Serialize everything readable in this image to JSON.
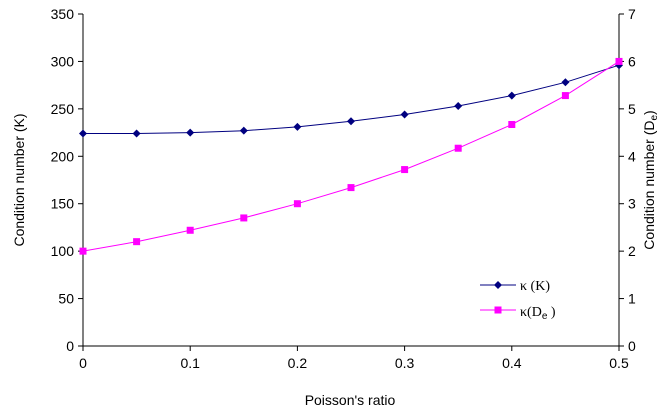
{
  "chart_data": {
    "type": "line",
    "x": [
      0,
      0.05,
      0.1,
      0.15,
      0.2,
      0.25,
      0.3,
      0.35,
      0.4,
      0.45,
      0.5
    ],
    "xlabel": "Poisson's ratio",
    "xlim": [
      0,
      0.5
    ],
    "xticks": [
      "0",
      "0.1",
      "0.2",
      "0.3",
      "0.4",
      "0.5"
    ],
    "ylabel_left": "Condition number (K)",
    "ylim_left": [
      0,
      350
    ],
    "yticks_left": [
      "0",
      "50",
      "100",
      "150",
      "200",
      "250",
      "300",
      "350"
    ],
    "ylabel_right_main": "Condition number (D",
    "ylabel_right_sub": "e",
    "ylabel_right_close": ")",
    "ylim_right": [
      0,
      7
    ],
    "yticks_right": [
      "0",
      "1",
      "2",
      "3",
      "4",
      "5",
      "6",
      "7"
    ],
    "grid": false,
    "legend_position": "bottom-right",
    "series": [
      {
        "name": "κ (K)",
        "axis": "left",
        "color": "#000080",
        "marker": "diamond",
        "values": [
          224,
          224,
          225,
          227,
          231,
          237,
          244,
          253,
          264,
          278,
          296
        ]
      },
      {
        "name_main": "κ(D",
        "name_sub": "e",
        "name_close": " )",
        "axis": "right",
        "color": "#ff00ff",
        "marker": "square",
        "values": [
          2.0,
          2.2,
          2.44,
          2.7,
          3.0,
          3.34,
          3.72,
          4.17,
          4.67,
          5.28,
          6.0
        ]
      }
    ]
  }
}
